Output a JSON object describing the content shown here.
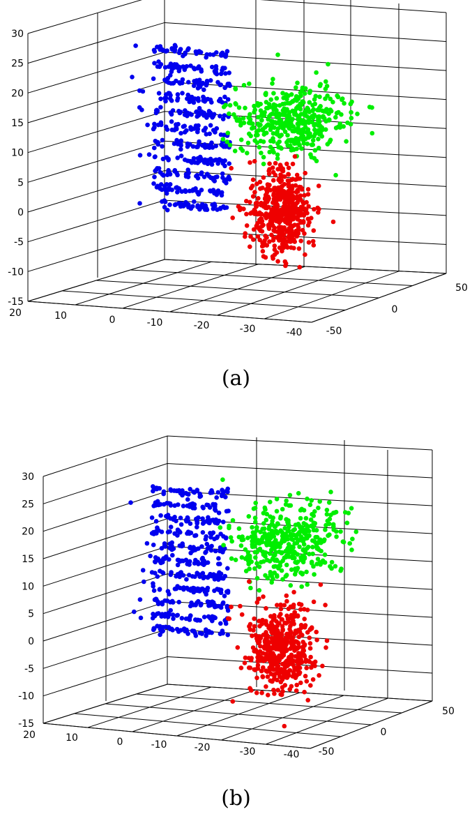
{
  "chart_data": [
    {
      "type": "scatter",
      "projection": "3d",
      "caption": "(a)",
      "grid": true,
      "zlim": [
        -15,
        30
      ],
      "z_ticks": [
        "-15",
        "-10",
        "-5",
        "0",
        "5",
        "10",
        "15",
        "20",
        "25",
        "30"
      ],
      "xlim": [
        -40,
        20
      ],
      "x_ticks": [
        "20",
        "10",
        "0",
        "-10",
        "-20",
        "-30",
        "-40"
      ],
      "ylim": [
        -50,
        50
      ],
      "y_ticks": [
        "-50",
        "0",
        "50"
      ],
      "colors": {
        "blue_cluster": "#0000ee",
        "green_cluster": "#00ee00",
        "red_cluster": "#ee0000"
      },
      "clusters": [
        {
          "color": "#0000ee",
          "z_range": [
            0,
            25
          ],
          "approx_points": 600
        },
        {
          "color": "#00ee00",
          "z_range": [
            4,
            23
          ],
          "approx_points": 500
        },
        {
          "color": "#ee0000",
          "z_range": [
            -12,
            10
          ],
          "approx_points": 550
        }
      ]
    },
    {
      "type": "scatter",
      "projection": "3d",
      "caption": "(b)",
      "grid": true,
      "zlim": [
        -15,
        30
      ],
      "z_ticks": [
        "-15",
        "-10",
        "-5",
        "0",
        "5",
        "10",
        "15",
        "20",
        "25",
        "30"
      ],
      "xlim": [
        -40,
        20
      ],
      "x_ticks": [
        "20",
        "10",
        "0",
        "-10",
        "-20",
        "-30",
        "-40"
      ],
      "ylim": [
        -50,
        50
      ],
      "y_ticks": [
        "-50",
        "0",
        "50"
      ],
      "colors": {
        "blue_cluster": "#0000ee",
        "green_cluster": "#00ee00",
        "red_cluster": "#ee0000"
      },
      "clusters": [
        {
          "color": "#0000ee",
          "z_range": [
            2,
            26
          ],
          "approx_points": 600
        },
        {
          "color": "#00ee00",
          "z_range": [
            8,
            29
          ],
          "approx_points": 500
        },
        {
          "color": "#ee0000",
          "z_range": [
            -12,
            10
          ],
          "approx_points": 550
        }
      ]
    }
  ]
}
